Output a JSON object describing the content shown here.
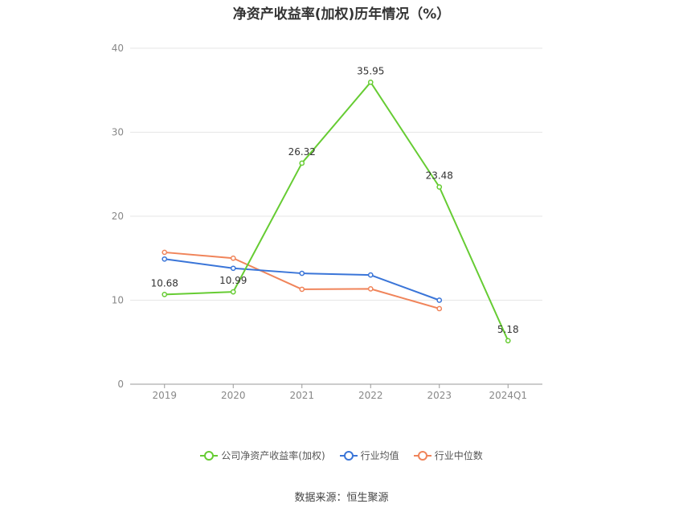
{
  "chart_data": {
    "type": "line",
    "title": "净资产收益率(加权)历年情况（%）",
    "categories": [
      "2019",
      "2020",
      "2021",
      "2022",
      "2023",
      "2024Q1"
    ],
    "ylim": [
      0,
      40
    ],
    "yticks": [
      0,
      10,
      20,
      30,
      40
    ],
    "grid": true,
    "legend_position": "bottom",
    "series": [
      {
        "name": "公司净资产收益率(加权)",
        "color": "#66cc33",
        "values": [
          10.68,
          10.99,
          26.32,
          35.95,
          23.48,
          5.18
        ],
        "labels": [
          "10.68",
          "10.99",
          "26.32",
          "35.95",
          "23.48",
          "5.18"
        ]
      },
      {
        "name": "行业均值",
        "color": "#3a75d8",
        "values": [
          14.9,
          13.8,
          13.2,
          13.0,
          10.0,
          null
        ]
      },
      {
        "name": "行业中位数",
        "color": "#f0845a",
        "values": [
          15.7,
          15.0,
          11.3,
          11.35,
          9.0,
          null
        ]
      }
    ]
  },
  "footer": {
    "source": "数据来源：恒生聚源"
  }
}
